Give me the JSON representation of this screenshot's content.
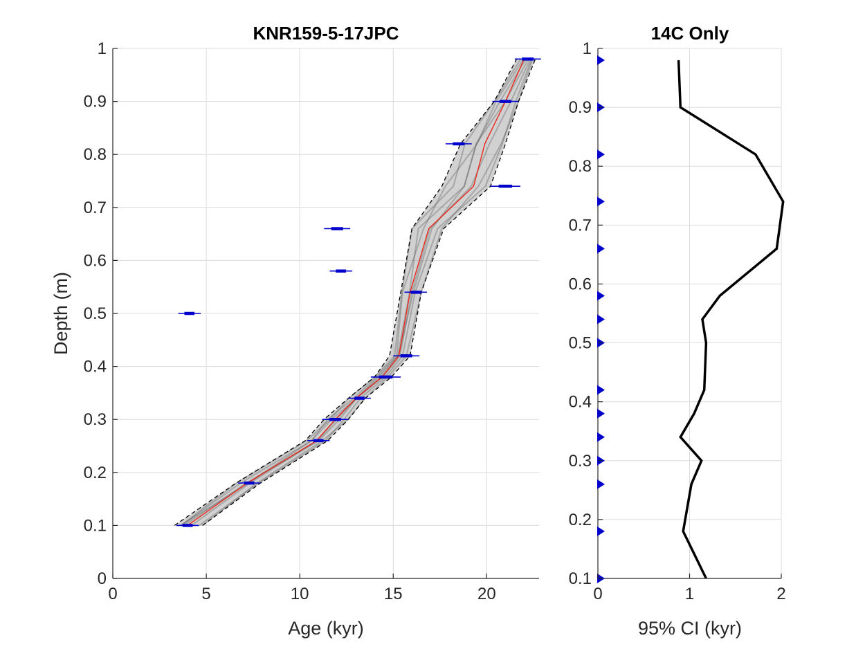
{
  "chart_data": [
    {
      "type": "line",
      "title": "KNR159-5-17JPC",
      "xlabel": "Age (kyr)",
      "ylabel": "Depth (m)",
      "xlim": [
        0,
        22.8
      ],
      "ylim": [
        0,
        1
      ],
      "y_reversed": false,
      "grid": true,
      "xticks": [
        "0",
        "5",
        "10",
        "15",
        "20"
      ],
      "yticks": [
        "0",
        "0.1",
        "0.2",
        "0.3",
        "0.4",
        "0.5",
        "0.6",
        "0.7",
        "0.8",
        "0.9",
        "1"
      ],
      "series": [
        {
          "role": "median",
          "color": "#e8291c",
          "depth": [
            0.1,
            0.18,
            0.26,
            0.3,
            0.34,
            0.38,
            0.42,
            0.54,
            0.66,
            0.74,
            0.82,
            0.9,
            0.98
          ],
          "age": [
            4.0,
            7.2,
            10.9,
            11.9,
            13.0,
            14.4,
            15.3,
            15.9,
            16.9,
            19.3,
            19.9,
            21.0,
            22.0
          ]
        },
        {
          "role": "lower-95",
          "color": "#000000",
          "style": "dashed",
          "depth": [
            0.1,
            0.18,
            0.26,
            0.3,
            0.34,
            0.38,
            0.42,
            0.54,
            0.66,
            0.74,
            0.82,
            0.9,
            0.98
          ],
          "age": [
            3.3,
            6.6,
            10.3,
            11.3,
            12.6,
            14.0,
            14.8,
            15.4,
            16.0,
            17.6,
            18.6,
            20.4,
            21.6
          ]
        },
        {
          "role": "upper-95",
          "color": "#000000",
          "style": "dashed",
          "depth": [
            0.1,
            0.18,
            0.26,
            0.3,
            0.34,
            0.38,
            0.42,
            0.54,
            0.66,
            0.74,
            0.82,
            0.9,
            0.98
          ],
          "age": [
            4.8,
            7.9,
            11.5,
            12.6,
            13.5,
            14.9,
            15.9,
            16.5,
            17.7,
            20.2,
            21.0,
            21.7,
            22.6
          ]
        }
      ],
      "dates": [
        {
          "depth": 0.1,
          "age": 4.0,
          "err": 0.6
        },
        {
          "depth": 0.18,
          "age": 7.3,
          "err": 0.6
        },
        {
          "depth": 0.26,
          "age": 11.0,
          "err": 0.6
        },
        {
          "depth": 0.3,
          "age": 11.9,
          "err": 0.7
        },
        {
          "depth": 0.34,
          "age": 13.2,
          "err": 0.6
        },
        {
          "depth": 0.38,
          "age": 14.6,
          "err": 0.8
        },
        {
          "depth": 0.42,
          "age": 15.7,
          "err": 0.7
        },
        {
          "depth": 0.5,
          "age": 4.1,
          "err": 0.6
        },
        {
          "depth": 0.54,
          "age": 16.2,
          "err": 0.6
        },
        {
          "depth": 0.58,
          "age": 12.2,
          "err": 0.6
        },
        {
          "depth": 0.66,
          "age": 12.0,
          "err": 0.7
        },
        {
          "depth": 0.74,
          "age": 21.0,
          "err": 0.8
        },
        {
          "depth": 0.82,
          "age": 18.5,
          "err": 0.7
        },
        {
          "depth": 0.9,
          "age": 21.0,
          "err": 0.7
        },
        {
          "depth": 0.98,
          "age": 22.2,
          "err": 0.7
        }
      ],
      "date_color": "#0000cc"
    },
    {
      "type": "line",
      "title": "14C Only",
      "xlabel": "95% CI (kyr)",
      "ylabel": "",
      "xlim": [
        0,
        2
      ],
      "ylim": [
        0.1,
        1
      ],
      "grid": true,
      "xticks": [
        "0",
        "1",
        "2"
      ],
      "yticks": [
        "0.1",
        "0.2",
        "0.3",
        "0.4",
        "0.5",
        "0.6",
        "0.7",
        "0.8",
        "0.9",
        "1"
      ],
      "series": [
        {
          "role": "ci-width",
          "color": "#000000",
          "depth": [
            0.1,
            0.18,
            0.26,
            0.3,
            0.34,
            0.38,
            0.42,
            0.5,
            0.54,
            0.58,
            0.66,
            0.74,
            0.82,
            0.9,
            0.98
          ],
          "width": [
            1.18,
            0.93,
            1.02,
            1.13,
            0.9,
            1.05,
            1.16,
            1.18,
            1.14,
            1.33,
            1.95,
            2.02,
            1.72,
            0.9,
            0.88
          ]
        }
      ],
      "markers": {
        "shape": "triangle-right",
        "color": "#0000cc",
        "depth": [
          0.1,
          0.18,
          0.26,
          0.3,
          0.34,
          0.38,
          0.42,
          0.5,
          0.54,
          0.58,
          0.66,
          0.74,
          0.82,
          0.9,
          0.98
        ]
      }
    }
  ]
}
